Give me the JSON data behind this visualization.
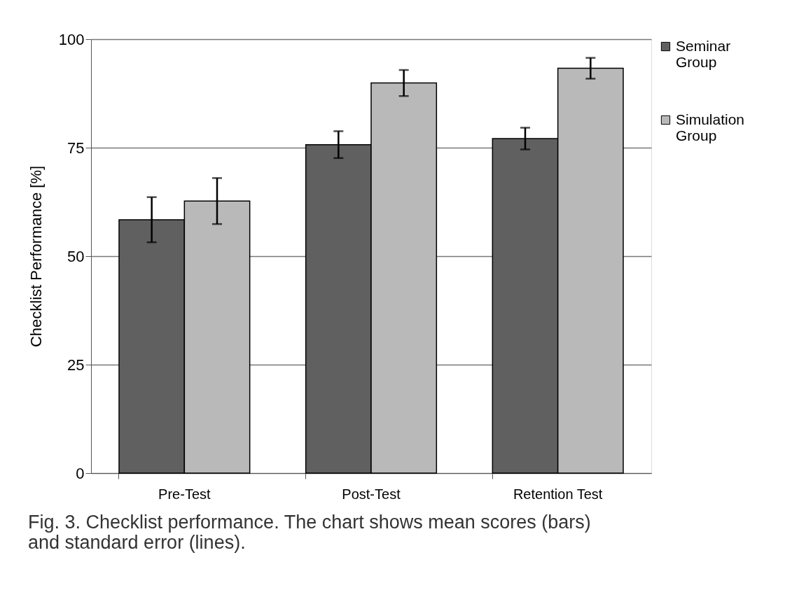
{
  "chart_data": {
    "type": "bar",
    "ylabel": "Checklist Performance [%]",
    "categories": [
      "Pre-Test",
      "Post-Test",
      "Retention Test"
    ],
    "series": [
      {
        "name": "Seminar Group",
        "color": "#606060",
        "values": [
          58.4,
          75.7,
          77.1
        ],
        "errors": [
          5.2,
          3.1,
          2.5
        ]
      },
      {
        "name": "Simulation Group",
        "color": "#b9b9b9",
        "values": [
          62.7,
          89.9,
          93.3
        ],
        "errors": [
          5.3,
          3.0,
          2.4
        ]
      }
    ],
    "ylim": [
      0,
      100
    ],
    "yticks": [
      0,
      25,
      50,
      75,
      100
    ],
    "grid": "y",
    "legend": "right",
    "annotations": [
      "Fig. 3. Checklist performance. The chart shows mean scores (bars) and standard error (lines)."
    ]
  }
}
